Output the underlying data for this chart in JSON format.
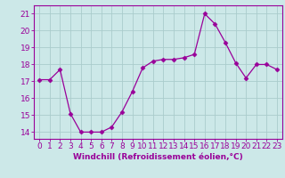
{
  "x": [
    0,
    1,
    2,
    3,
    4,
    5,
    6,
    7,
    8,
    9,
    10,
    11,
    12,
    13,
    14,
    15,
    16,
    17,
    18,
    19,
    20,
    21,
    22,
    23
  ],
  "y": [
    17.1,
    17.1,
    17.7,
    15.1,
    14.0,
    14.0,
    14.0,
    14.3,
    15.2,
    16.4,
    17.8,
    18.2,
    18.3,
    18.3,
    18.4,
    18.6,
    21.0,
    20.4,
    19.3,
    18.1,
    17.2,
    18.0,
    18.0,
    17.7
  ],
  "line_color": "#990099",
  "marker": "D",
  "marker_size": 2.5,
  "background_color": "#cce8e8",
  "grid_color": "#aacccc",
  "xlabel": "Windchill (Refroidissement éolien,°C)",
  "xlabel_fontsize": 6.5,
  "ylabel_ticks": [
    14,
    15,
    16,
    17,
    18,
    19,
    20,
    21
  ],
  "xlim": [
    -0.5,
    23.5
  ],
  "ylim": [
    13.6,
    21.5
  ],
  "tick_fontsize": 6.5,
  "spine_color": "#990099",
  "title": ""
}
